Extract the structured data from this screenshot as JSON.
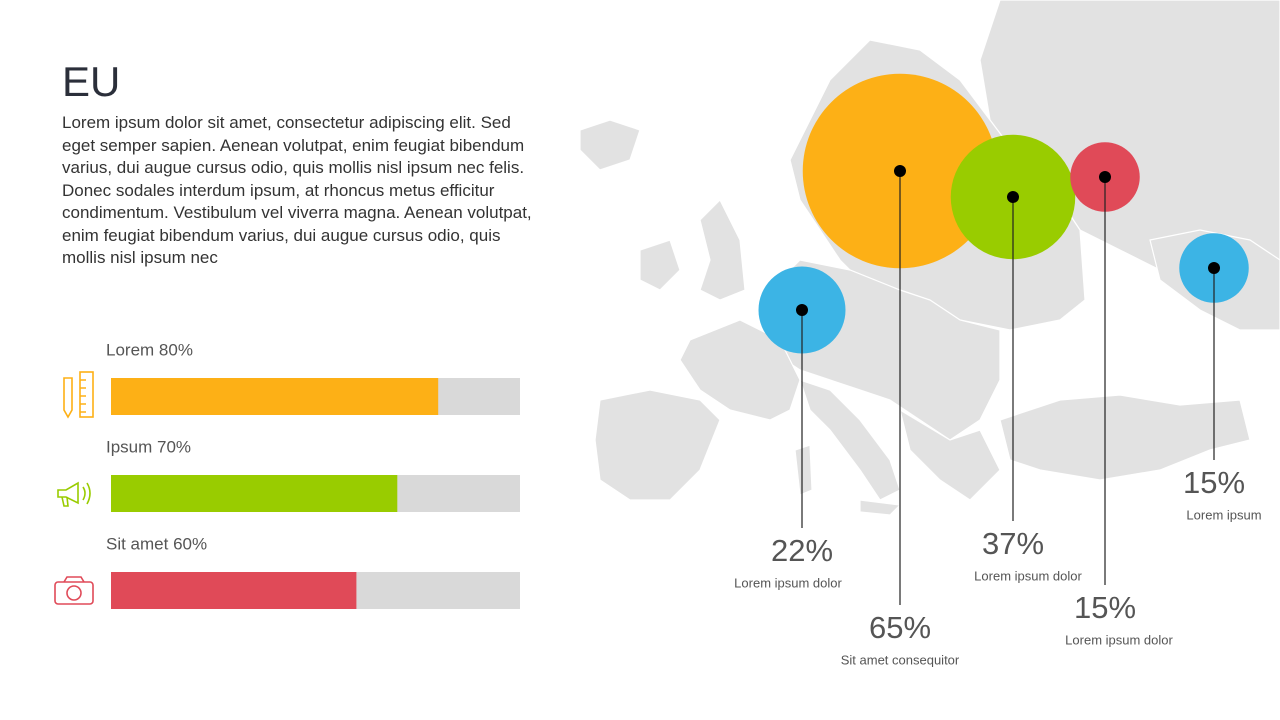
{
  "header": {
    "title": "EU",
    "body": "Lorem ipsum dolor sit amet, consectetur adipiscing elit. Sed eget semper sapien. Aenean volutpat, enim feugiat bibendum varius, dui augue cursus odio, quis mollis nisl ipsum nec felis. Donec sodales interdum ipsum, at rhoncus metus efficitur condimentum. Vestibulum vel viverra magna. Aenean volutpat, enim feugiat bibendum varius, dui augue cursus odio, quis mollis nisl ipsum nec"
  },
  "bars": [
    {
      "label": "Lorem 80%",
      "value": 80,
      "color": "#fdb016"
    },
    {
      "label": "Ipsum 70%",
      "value": 70,
      "color": "#99cc00"
    },
    {
      "label": "Sit amet 60%",
      "value": 60,
      "color": "#e04a58"
    }
  ],
  "bubbles": [
    {
      "value": 22,
      "value_label": "22%",
      "caption": "Lorem ipsum dolor",
      "color": "#3cb4e5"
    },
    {
      "value": 65,
      "value_label": "65%",
      "caption": "Sit amet consequitor",
      "color": "#fdb016"
    },
    {
      "value": 37,
      "value_label": "37%",
      "caption": "Lorem ipsum dolor",
      "color": "#99cc00"
    },
    {
      "value": 15,
      "value_label": "15%",
      "caption": "Lorem ipsum dolor",
      "color": "#e04a58"
    },
    {
      "value": 15,
      "value_label": "15%",
      "caption": "Lorem ipsum",
      "color": "#3cb4e5"
    }
  ]
}
